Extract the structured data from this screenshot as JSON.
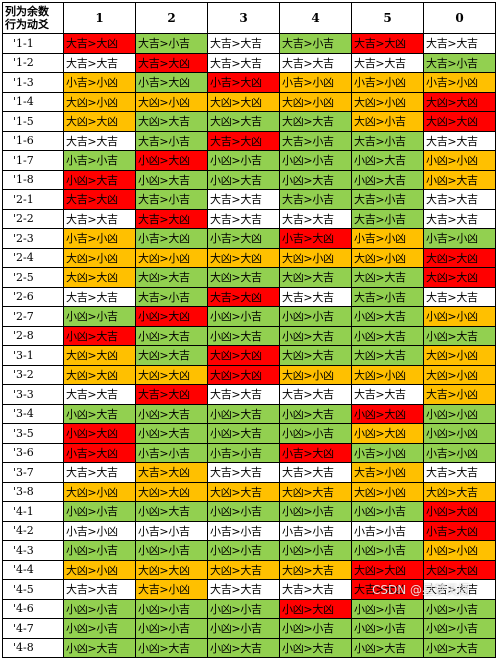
{
  "table": {
    "corner_line1": "列为余数",
    "corner_line2": "行为动爻",
    "columns": [
      "1",
      "2",
      "3",
      "4",
      "5",
      "0"
    ],
    "colors": {
      "red": "#ff0000",
      "orange": "#ffc000",
      "green": "#92d050",
      "white": "#ffffff"
    },
    "rows": [
      {
        "label": "'1-1",
        "cells": [
          [
            "大吉>大凶",
            "red"
          ],
          [
            "大吉>小吉",
            "green"
          ],
          [
            "大吉>大吉",
            "white"
          ],
          [
            "大吉>小吉",
            "green"
          ],
          [
            "大吉>大凶",
            "red"
          ],
          [
            "大吉>大吉",
            "white"
          ]
        ]
      },
      {
        "label": "'1-2",
        "cells": [
          [
            "大吉>大吉",
            "white"
          ],
          [
            "大吉>大凶",
            "red"
          ],
          [
            "大吉>大吉",
            "white"
          ],
          [
            "大吉>大吉",
            "white"
          ],
          [
            "大吉>大吉",
            "white"
          ],
          [
            "大吉>小吉",
            "green"
          ]
        ]
      },
      {
        "label": "'1-3",
        "cells": [
          [
            "小吉>小凶",
            "orange"
          ],
          [
            "小吉>大凶",
            "green"
          ],
          [
            "小吉>大凶",
            "red"
          ],
          [
            "小吉>小凶",
            "orange"
          ],
          [
            "小吉>小凶",
            "orange"
          ],
          [
            "小吉>小凶",
            "orange"
          ]
        ]
      },
      {
        "label": "'1-4",
        "cells": [
          [
            "大凶>小凶",
            "orange"
          ],
          [
            "大凶>小凶",
            "orange"
          ],
          [
            "大凶>大凶",
            "orange"
          ],
          [
            "大凶>小凶",
            "orange"
          ],
          [
            "大凶>小凶",
            "orange"
          ],
          [
            "大凶>大凶",
            "red"
          ]
        ]
      },
      {
        "label": "'1-5",
        "cells": [
          [
            "大凶>大凶",
            "orange"
          ],
          [
            "大凶>大吉",
            "green"
          ],
          [
            "大凶>大吉",
            "green"
          ],
          [
            "大凶>大吉",
            "green"
          ],
          [
            "大凶>小吉",
            "orange"
          ],
          [
            "大凶>大凶",
            "red"
          ]
        ]
      },
      {
        "label": "'1-6",
        "cells": [
          [
            "大吉>大吉",
            "white"
          ],
          [
            "大吉>小吉",
            "green"
          ],
          [
            "大吉>大凶",
            "red"
          ],
          [
            "大吉>小吉",
            "green"
          ],
          [
            "大吉>小吉",
            "green"
          ],
          [
            "大吉>大吉",
            "white"
          ]
        ]
      },
      {
        "label": "'1-7",
        "cells": [
          [
            "小吉>小吉",
            "green"
          ],
          [
            "小凶>大凶",
            "red"
          ],
          [
            "小凶>小吉",
            "green"
          ],
          [
            "小凶>小吉",
            "green"
          ],
          [
            "小凶>大吉",
            "green"
          ],
          [
            "小凶>小凶",
            "orange"
          ]
        ]
      },
      {
        "label": "'1-8",
        "cells": [
          [
            "小凶>大吉",
            "red"
          ],
          [
            "小凶>大吉",
            "green"
          ],
          [
            "小凶>大吉",
            "green"
          ],
          [
            "小凶>大吉",
            "green"
          ],
          [
            "小凶>大吉",
            "green"
          ],
          [
            "小凶>大吉",
            "orange"
          ]
        ]
      },
      {
        "label": "'2-1",
        "cells": [
          [
            "大吉>大凶",
            "red"
          ],
          [
            "大吉>小吉",
            "green"
          ],
          [
            "大吉>大吉",
            "white"
          ],
          [
            "大吉>小吉",
            "green"
          ],
          [
            "大吉>小吉",
            "green"
          ],
          [
            "大吉>大吉",
            "white"
          ]
        ]
      },
      {
        "label": "'2-2",
        "cells": [
          [
            "大吉>大吉",
            "white"
          ],
          [
            "大吉>大凶",
            "red"
          ],
          [
            "大吉>大吉",
            "white"
          ],
          [
            "大吉>大吉",
            "white"
          ],
          [
            "大吉>小吉",
            "green"
          ],
          [
            "大吉>大吉",
            "white"
          ]
        ]
      },
      {
        "label": "'2-3",
        "cells": [
          [
            "小吉>小凶",
            "orange"
          ],
          [
            "小吉>大凶",
            "green"
          ],
          [
            "小吉>大凶",
            "green"
          ],
          [
            "小吉>大凶",
            "red"
          ],
          [
            "小吉>小凶",
            "orange"
          ],
          [
            "小吉>小凶",
            "green"
          ]
        ]
      },
      {
        "label": "'2-4",
        "cells": [
          [
            "大凶>小凶",
            "orange"
          ],
          [
            "大凶>小凶",
            "orange"
          ],
          [
            "大凶>大凶",
            "orange"
          ],
          [
            "大凶>小凶",
            "orange"
          ],
          [
            "大凶>小凶",
            "orange"
          ],
          [
            "大凶>大凶",
            "red"
          ]
        ]
      },
      {
        "label": "'2-5",
        "cells": [
          [
            "大凶>大凶",
            "orange"
          ],
          [
            "大凶>大吉",
            "green"
          ],
          [
            "大凶>大吉",
            "green"
          ],
          [
            "大凶>大吉",
            "green"
          ],
          [
            "大凶>大吉",
            "green"
          ],
          [
            "大凶>大凶",
            "red"
          ]
        ]
      },
      {
        "label": "'2-6",
        "cells": [
          [
            "大吉>大吉",
            "white"
          ],
          [
            "大吉>小吉",
            "green"
          ],
          [
            "大吉>大凶",
            "red"
          ],
          [
            "大吉>大吉",
            "white"
          ],
          [
            "大吉>小吉",
            "green"
          ],
          [
            "大吉>大吉",
            "white"
          ]
        ]
      },
      {
        "label": "'2-7",
        "cells": [
          [
            "小凶>小吉",
            "green"
          ],
          [
            "小凶>大凶",
            "red"
          ],
          [
            "小凶>小吉",
            "green"
          ],
          [
            "小凶>小吉",
            "green"
          ],
          [
            "小凶>大吉",
            "green"
          ],
          [
            "小凶>小凶",
            "orange"
          ]
        ]
      },
      {
        "label": "'2-8",
        "cells": [
          [
            "小凶>大吉",
            "red"
          ],
          [
            "小凶>大吉",
            "green"
          ],
          [
            "小凶>大吉",
            "green"
          ],
          [
            "小凶>大吉",
            "green"
          ],
          [
            "小凶>大吉",
            "green"
          ],
          [
            "小凶>大吉",
            "green"
          ]
        ]
      },
      {
        "label": "'3-1",
        "cells": [
          [
            "大凶>大凶",
            "orange"
          ],
          [
            "大凶>大吉",
            "green"
          ],
          [
            "大凶>大凶",
            "red"
          ],
          [
            "大凶>大吉",
            "green"
          ],
          [
            "大凶>大吉",
            "green"
          ],
          [
            "大凶>小凶",
            "orange"
          ]
        ]
      },
      {
        "label": "'3-2",
        "cells": [
          [
            "大凶>大凶",
            "orange"
          ],
          [
            "大凶>大凶",
            "orange"
          ],
          [
            "大凶>大凶",
            "red"
          ],
          [
            "大凶>小凶",
            "orange"
          ],
          [
            "大凶>小凶",
            "orange"
          ],
          [
            "大凶>小凶",
            "orange"
          ]
        ]
      },
      {
        "label": "'3-3",
        "cells": [
          [
            "大吉>大吉",
            "white"
          ],
          [
            "大吉>大凶",
            "red"
          ],
          [
            "大吉>大吉",
            "white"
          ],
          [
            "大吉>大吉",
            "white"
          ],
          [
            "大吉>大吉",
            "white"
          ],
          [
            "大吉>小凶",
            "orange"
          ]
        ]
      },
      {
        "label": "'3-4",
        "cells": [
          [
            "小凶>大吉",
            "green"
          ],
          [
            "小凶>大吉",
            "green"
          ],
          [
            "小凶>大吉",
            "green"
          ],
          [
            "小凶>大吉",
            "green"
          ],
          [
            "小凶>大凶",
            "red"
          ],
          [
            "小凶>小凶",
            "green"
          ]
        ]
      },
      {
        "label": "'3-5",
        "cells": [
          [
            "小凶>大凶",
            "red"
          ],
          [
            "小凶>大吉",
            "green"
          ],
          [
            "小凶>大吉",
            "green"
          ],
          [
            "小凶>小吉",
            "green"
          ],
          [
            "小凶>大凶",
            "orange"
          ],
          [
            "小凶>小凶",
            "green"
          ]
        ]
      },
      {
        "label": "'3-6",
        "cells": [
          [
            "小吉>大凶",
            "red"
          ],
          [
            "小吉>小吉",
            "green"
          ],
          [
            "小吉>小吉",
            "green"
          ],
          [
            "小吉>大凶",
            "red"
          ],
          [
            "小吉>小凶",
            "green"
          ],
          [
            "小吉>小凶",
            "green"
          ]
        ]
      },
      {
        "label": "'3-7",
        "cells": [
          [
            "大吉>大吉",
            "white"
          ],
          [
            "大吉>大凶",
            "orange"
          ],
          [
            "大吉>大吉",
            "white"
          ],
          [
            "大吉>大吉",
            "white"
          ],
          [
            "大吉>小凶",
            "orange"
          ],
          [
            "大吉>大吉",
            "white"
          ]
        ]
      },
      {
        "label": "'3-8",
        "cells": [
          [
            "大凶>小凶",
            "orange"
          ],
          [
            "大凶>大凶",
            "orange"
          ],
          [
            "大凶>大吉",
            "orange"
          ],
          [
            "大凶>大吉",
            "orange"
          ],
          [
            "大凶>小凶",
            "orange"
          ],
          [
            "大凶>大吉",
            "orange"
          ]
        ]
      },
      {
        "label": "'4-1",
        "cells": [
          [
            "小凶>小吉",
            "green"
          ],
          [
            "小凶>大吉",
            "green"
          ],
          [
            "小凶>小吉",
            "green"
          ],
          [
            "小凶>小吉",
            "green"
          ],
          [
            "小凶>小吉",
            "green"
          ],
          [
            "小凶>大凶",
            "red"
          ]
        ]
      },
      {
        "label": "'4-2",
        "cells": [
          [
            "小吉>小凶",
            "white"
          ],
          [
            "小吉>小吉",
            "white"
          ],
          [
            "小吉>小吉",
            "white"
          ],
          [
            "小吉>小吉",
            "white"
          ],
          [
            "小吉>小吉",
            "white"
          ],
          [
            "小吉>大凶",
            "red"
          ]
        ]
      },
      {
        "label": "'4-3",
        "cells": [
          [
            "小凶>小吉",
            "green"
          ],
          [
            "小凶>小吉",
            "green"
          ],
          [
            "小凶>小吉",
            "green"
          ],
          [
            "小凶>小吉",
            "green"
          ],
          [
            "小凶>小吉",
            "green"
          ],
          [
            "小凶>小凶",
            "orange"
          ]
        ]
      },
      {
        "label": "'4-4",
        "cells": [
          [
            "大凶>小凶",
            "orange"
          ],
          [
            "大凶>大凶",
            "orange"
          ],
          [
            "大凶>大吉",
            "orange"
          ],
          [
            "大凶>大吉",
            "orange"
          ],
          [
            "大凶>大凶",
            "red"
          ],
          [
            "大凶>大凶",
            "red"
          ]
        ]
      },
      {
        "label": "'4-5",
        "cells": [
          [
            "大吉>大吉",
            "white"
          ],
          [
            "大吉>小凶",
            "orange"
          ],
          [
            "大吉>大吉",
            "white"
          ],
          [
            "大吉>大吉",
            "white"
          ],
          [
            "大吉>大凶",
            "red"
          ],
          [
            "大吉>大吉",
            "white"
          ]
        ]
      },
      {
        "label": "'4-6",
        "cells": [
          [
            "小凶>小吉",
            "green"
          ],
          [
            "小凶>小吉",
            "green"
          ],
          [
            "小凶>小吉",
            "green"
          ],
          [
            "小凶>大凶",
            "red"
          ],
          [
            "小凶>小吉",
            "green"
          ],
          [
            "小凶>小吉",
            "green"
          ]
        ]
      },
      {
        "label": "'4-7",
        "cells": [
          [
            "小凶>小吉",
            "green"
          ],
          [
            "小凶>小吉",
            "green"
          ],
          [
            "小凶>小吉",
            "green"
          ],
          [
            "小凶>小吉",
            "green"
          ],
          [
            "小凶>小吉",
            "green"
          ],
          [
            "小凶>小吉",
            "green"
          ]
        ]
      },
      {
        "label": "'4-8",
        "cells": [
          [
            "小凶>大吉",
            "green"
          ],
          [
            "小凶>大吉",
            "green"
          ],
          [
            "小凶>大吉",
            "green"
          ],
          [
            "小凶>大吉",
            "green"
          ],
          [
            "小凶>大吉",
            "green"
          ],
          [
            "小凶>大吉",
            "green"
          ]
        ]
      }
    ]
  },
  "watermark": "CSDN @星梦天阁"
}
